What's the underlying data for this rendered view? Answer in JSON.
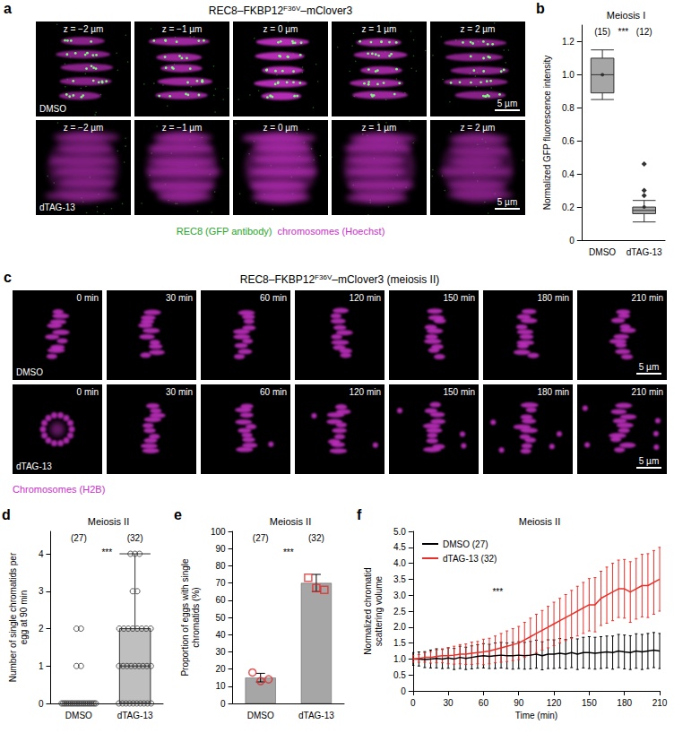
{
  "image_panels": [
    {
      "letter": "a",
      "title": [
        {
          "text": "REC8–FKBP12"
        },
        {
          "text": "F36V",
          "sup": true
        },
        {
          "text": "–mClover3"
        }
      ],
      "columns": [
        "z = −2 µm",
        "z = −1 µm",
        "z = 0 µm",
        "z = 1 µm",
        "z = 2 µm"
      ],
      "rows": [
        "DMSO",
        "dTAG-13"
      ],
      "scale_bar": "5 µm",
      "channels": [
        {
          "name": "REC8 (GFP antibody)",
          "color": "#2aa52a"
        },
        {
          "name": "chromosomes (Hoechst)",
          "color": "#c832c8"
        }
      ]
    },
    {
      "letter": "c",
      "title": [
        {
          "text": "REC8–FKBP12"
        },
        {
          "text": "F36V",
          "sup": true
        },
        {
          "text": "–mClover3 (meiosis II)"
        }
      ],
      "columns": [
        "0 min",
        "30 min",
        "60 min",
        "120 min",
        "150 min",
        "180 min",
        "210 min"
      ],
      "rows": [
        "DMSO",
        "dTAG-13"
      ],
      "scale_bar": "5 µm",
      "channels": [
        {
          "name": "Chromosomes (H2B)",
          "color": "#c832c8"
        }
      ]
    }
  ],
  "chart_data": [
    {
      "letter": "b",
      "type": "boxplot",
      "title": "Meiosis I",
      "categories": [
        "DMSO",
        "dTAG-13"
      ],
      "ylabel": "Normalized GFP fluorescence intensity",
      "ylim": [
        0,
        1.3
      ],
      "yticks": [
        0,
        0.2,
        0.4,
        0.6,
        0.8,
        {
          "value": 1,
          "label": "1.0"
        },
        1.2
      ],
      "boxes": [
        {
          "min": 0.85,
          "q1": 0.89,
          "median": 1.0,
          "q3": 1.1,
          "max": 1.15,
          "mean": 1.0,
          "outliers": []
        },
        {
          "min": 0.11,
          "q1": 0.16,
          "median": 0.18,
          "q3": 0.2,
          "max": 0.24,
          "mean": 0.2,
          "outliers": [
            0.27,
            0.3,
            0.46
          ]
        }
      ],
      "group_sizes": [
        {
          "value": 15,
          "label": "(15)"
        },
        {
          "value": 12,
          "label": "(12)"
        }
      ],
      "significance": "***",
      "color": "#a6a6a6",
      "grid": false
    },
    {
      "letter": "d",
      "type": "boxplot",
      "title": "Meiosis II",
      "categories": [
        "DMSO",
        "dTAG-13"
      ],
      "ylabel": "Number of single chromatids per egg at 90 min",
      "ylim": [
        0,
        4.6
      ],
      "yticks": [
        0,
        1,
        2,
        3,
        4
      ],
      "boxes": [
        {
          "min": 0,
          "q1": 0,
          "median": 0,
          "q3": 0,
          "max": 0,
          "outliers": []
        },
        {
          "min": 0,
          "q1": 0,
          "median": 1,
          "q3": 2,
          "max": 4,
          "outliers": []
        }
      ],
      "points": [
        [
          0,
          0,
          0,
          0,
          0,
          0,
          0,
          0,
          0,
          0,
          0,
          0,
          0,
          0,
          0,
          0,
          0,
          0,
          0,
          0,
          0,
          0,
          0,
          1,
          1,
          2,
          2
        ],
        [
          0,
          0,
          0,
          0,
          0,
          0,
          0,
          0,
          0,
          0,
          1,
          1,
          1,
          1,
          1,
          1,
          1,
          1,
          1,
          2,
          2,
          2,
          2,
          2,
          2,
          2,
          2,
          3,
          3,
          4,
          4,
          4
        ]
      ],
      "marker": "circle",
      "group_sizes": [
        {
          "value": 27,
          "label": "(27)"
        },
        {
          "value": 32,
          "label": "(32)"
        }
      ],
      "significance": "***",
      "color": "#bfbfbf",
      "grid": false
    },
    {
      "letter": "e",
      "type": "bar",
      "title": "Meiosis II",
      "categories": [
        "DMSO",
        "dTAG-13"
      ],
      "ylabel": "Proportion of eggs with single chromatids (%)",
      "ylim": [
        0,
        100
      ],
      "yticks": [
        0,
        10,
        20,
        30,
        40,
        50,
        60,
        70,
        80,
        90,
        100
      ],
      "values": [
        15,
        70
      ],
      "errors": [
        2.5,
        5
      ],
      "replicates": [
        {
          "values": [
            18,
            13,
            14
          ],
          "marker": "circle",
          "color": "#e03030"
        },
        {
          "values": [
            73,
            67,
            66
          ],
          "marker": "square",
          "color": "#e03030"
        }
      ],
      "group_sizes": [
        {
          "value": 27,
          "label": "(27)"
        },
        {
          "value": 32,
          "label": "(32)"
        }
      ],
      "significance": "***",
      "color": "#a6a6a6",
      "grid": false
    },
    {
      "letter": "f",
      "type": "line",
      "title": "Meiosis II",
      "xlabel": "Time (min)",
      "ylabel": "Normalized chromatid scattering volume",
      "x": [
        0,
        5,
        10,
        15,
        20,
        25,
        30,
        35,
        40,
        45,
        50,
        55,
        60,
        65,
        70,
        75,
        80,
        85,
        90,
        95,
        100,
        105,
        110,
        115,
        120,
        125,
        130,
        135,
        140,
        145,
        150,
        155,
        160,
        165,
        170,
        175,
        180,
        185,
        190,
        195,
        200,
        205,
        210
      ],
      "xlim": [
        0,
        210
      ],
      "xticks": [
        0,
        30,
        60,
        90,
        120,
        150,
        180,
        210
      ],
      "ylim": [
        0,
        5
      ],
      "yticks": [
        0,
        0.5,
        {
          "value": 1,
          "label": "1.0"
        },
        1.5,
        {
          "value": 2,
          "label": "2.0"
        },
        2.5,
        {
          "value": 3,
          "label": "3.0"
        },
        3.5,
        {
          "value": 4,
          "label": "4.0"
        },
        4.5,
        {
          "value": 5,
          "label": "5.0"
        }
      ],
      "series": [
        {
          "name": "DMSO (27)",
          "color": "#000000",
          "values": [
            1,
            1,
            0.98,
            1,
            1.02,
            1,
            1.03,
            1,
            1.05,
            1.02,
            1.05,
            1.08,
            1.1,
            1.08,
            1.1,
            1.12,
            1.1,
            1.1,
            1.12,
            1.1,
            1.12,
            1.15,
            1.1,
            1.15,
            1.15,
            1.18,
            1.15,
            1.2,
            1.15,
            1.2,
            1.2,
            1.18,
            1.2,
            1.22,
            1.2,
            1.25,
            1.22,
            1.2,
            1.25,
            1.22,
            1.25,
            1.28,
            1.25
          ],
          "errors": [
            0.2,
            0.22,
            0.25,
            0.28,
            0.3,
            0.3,
            0.32,
            0.33,
            0.35,
            0.35,
            0.36,
            0.37,
            0.38,
            0.38,
            0.4,
            0.4,
            0.4,
            0.42,
            0.42,
            0.42,
            0.43,
            0.44,
            0.44,
            0.45,
            0.45,
            0.46,
            0.46,
            0.47,
            0.48,
            0.48,
            0.5,
            0.5,
            0.5,
            0.5,
            0.52,
            0.52,
            0.53,
            0.53,
            0.54,
            0.55,
            0.55,
            0.55,
            0.55
          ]
        },
        {
          "name": "dTAG-13 (32)",
          "color": "#e8302a",
          "values": [
            1,
            1.02,
            1.05,
            1.05,
            1.08,
            1.1,
            1.1,
            1.12,
            1.15,
            1.15,
            1.18,
            1.2,
            1.22,
            1.25,
            1.3,
            1.35,
            1.4,
            1.45,
            1.5,
            1.6,
            1.7,
            1.8,
            1.9,
            2,
            2.1,
            2.2,
            2.3,
            2.4,
            2.5,
            2.6,
            2.7,
            2.7,
            2.9,
            3,
            3.1,
            3.2,
            3.2,
            3.1,
            3.2,
            3.3,
            3.3,
            3.4,
            3.5
          ],
          "errors": [
            0.1,
            0.12,
            0.15,
            0.18,
            0.2,
            0.22,
            0.25,
            0.28,
            0.3,
            0.32,
            0.35,
            0.35,
            0.4,
            0.4,
            0.42,
            0.45,
            0.48,
            0.5,
            0.52,
            0.55,
            0.58,
            0.6,
            0.62,
            0.65,
            0.68,
            0.7,
            0.72,
            0.75,
            0.78,
            0.8,
            0.82,
            0.85,
            0.85,
            0.88,
            0.9,
            0.9,
            0.92,
            0.95,
            0.95,
            0.98,
            1,
            1,
            1
          ]
        }
      ],
      "legend": "top-left",
      "significance": "***",
      "grid": false
    }
  ]
}
